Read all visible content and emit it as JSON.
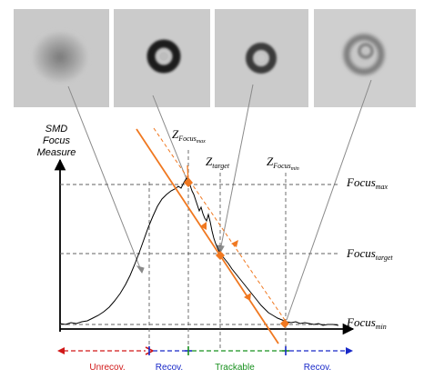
{
  "axis": {
    "y_title_lines": [
      "SMD",
      "Focus",
      "Measure"
    ]
  },
  "z_labels": {
    "zmax": {
      "main": "Z",
      "sub": "Focus",
      "subsub": "max"
    },
    "ztarget": {
      "main": "Z",
      "sub": "target"
    },
    "zmin": {
      "main": "Z",
      "sub": "Focus",
      "subsub": "min"
    }
  },
  "focus_labels": {
    "max": {
      "main": "Focus",
      "sub": "max"
    },
    "target": {
      "main": "Focus",
      "sub": "target"
    },
    "min": {
      "main": "Focus",
      "sub": "min"
    }
  },
  "regions": [
    {
      "label": "Unrecov.",
      "color": "#d01818"
    },
    {
      "label": "Recov.",
      "color": "#1828c8"
    },
    {
      "label": "Trackable",
      "color": "#18901e"
    },
    {
      "label": "Recov.",
      "color": "#1828c8"
    }
  ],
  "thumbnails": [
    {
      "name": "thumbnail-defocused-blur"
    },
    {
      "name": "thumbnail-max-focus-ring"
    },
    {
      "name": "thumbnail-target-focus-ring"
    },
    {
      "name": "thumbnail-min-focus-ring"
    }
  ],
  "colors": {
    "accent_orange": "#f07820",
    "curve": "#000000",
    "grid": "#606060"
  }
}
